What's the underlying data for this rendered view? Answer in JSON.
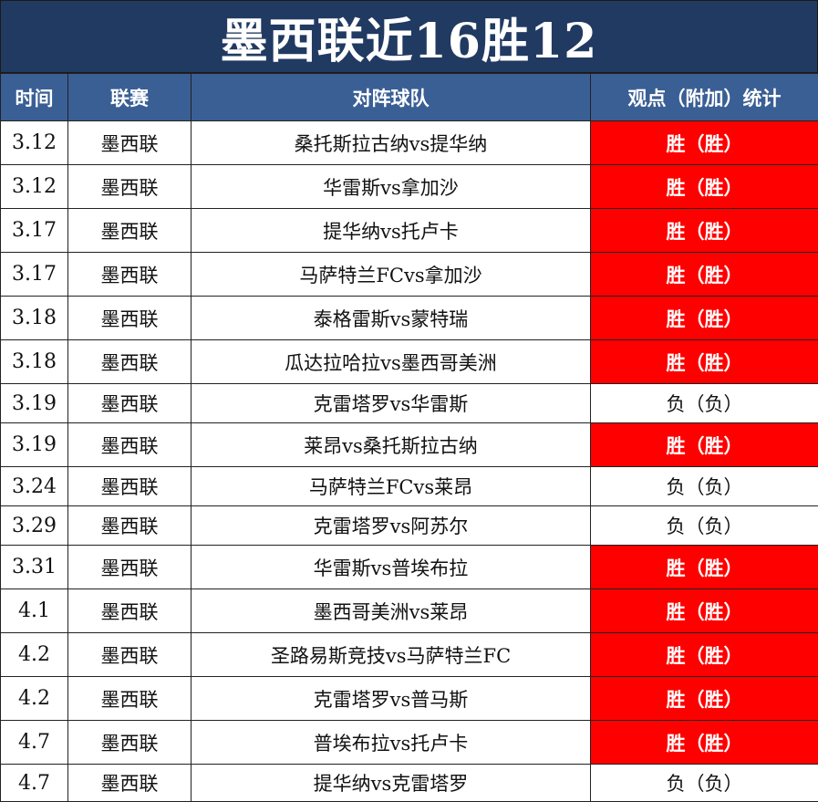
{
  "title": "墨西联近16胜12",
  "headers": {
    "time": "时间",
    "league": "联赛",
    "match": "对阵球队",
    "result": "观点（附加）统计"
  },
  "rows": [
    {
      "time": "3.12",
      "league": "墨西联",
      "match": "桑托斯拉古纳vs提华纳",
      "result": "胜（胜）",
      "win": true
    },
    {
      "time": "3.12",
      "league": "墨西联",
      "match": "华雷斯vs拿加沙",
      "result": "胜（胜）",
      "win": true
    },
    {
      "time": "3.17",
      "league": "墨西联",
      "match": "提华纳vs托卢卡",
      "result": "胜（胜）",
      "win": true
    },
    {
      "time": "3.17",
      "league": "墨西联",
      "match": "马萨特兰FCvs拿加沙",
      "result": "胜（胜）",
      "win": true
    },
    {
      "time": "3.18",
      "league": "墨西联",
      "match": "泰格雷斯vs蒙特瑞",
      "result": "胜（胜）",
      "win": true
    },
    {
      "time": "3.18",
      "league": "墨西联",
      "match": "瓜达拉哈拉vs墨西哥美洲",
      "result": "胜（胜）",
      "win": true
    },
    {
      "time": "3.19",
      "league": "墨西联",
      "match": "克雷塔罗vs华雷斯",
      "result": "负（负）",
      "win": false
    },
    {
      "time": "3.19",
      "league": "墨西联",
      "match": "莱昂vs桑托斯拉古纳",
      "result": "胜（胜）",
      "win": true
    },
    {
      "time": "3.24",
      "league": "墨西联",
      "match": "马萨特兰FCvs莱昂",
      "result": "负（负）",
      "win": false
    },
    {
      "time": "3.29",
      "league": "墨西联",
      "match": "克雷塔罗vs阿苏尔",
      "result": "负（负）",
      "win": false
    },
    {
      "time": "3.31",
      "league": "墨西联",
      "match": "华雷斯vs普埃布拉",
      "result": "胜（胜）",
      "win": true
    },
    {
      "time": "4.1",
      "league": "墨西联",
      "match": "墨西哥美洲vs莱昂",
      "result": "胜（胜）",
      "win": true
    },
    {
      "time": "4.2",
      "league": "墨西联",
      "match": "圣路易斯竞技vs马萨特兰FC",
      "result": "胜（胜）",
      "win": true
    },
    {
      "time": "4.2",
      "league": "墨西联",
      "match": "克雷塔罗vs普马斯",
      "result": "胜（胜）",
      "win": true
    },
    {
      "time": "4.7",
      "league": "墨西联",
      "match": "普埃布拉vs托卢卡",
      "result": "胜（胜）",
      "win": true
    },
    {
      "time": "4.7",
      "league": "墨西联",
      "match": "提华纳vs克雷塔罗",
      "result": "负（负）",
      "win": false
    }
  ],
  "colors": {
    "title_bg": "#213a62",
    "header_bg": "#3a5f95",
    "win_bg": "#ff0000",
    "loss_bg": "#ffffff"
  }
}
